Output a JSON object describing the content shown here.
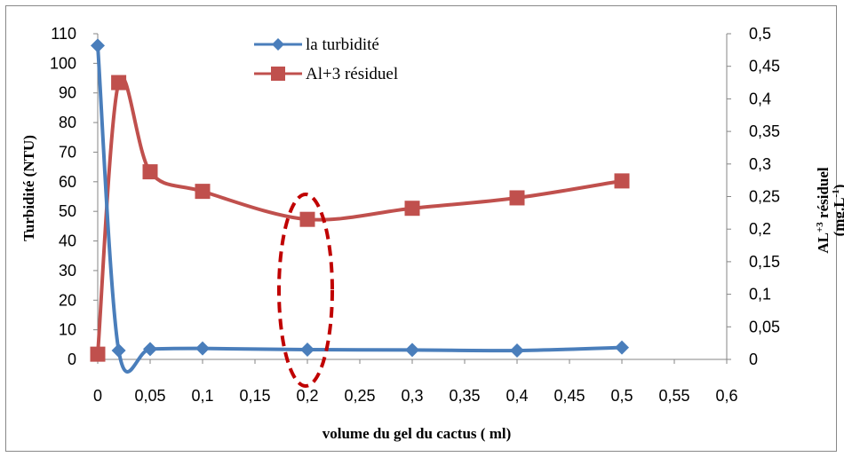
{
  "chart_data": {
    "type": "line",
    "title": "",
    "xlabel": "volume du gel du cactus ( ml)",
    "ylabel": "Turbidité (NTU)",
    "y2label_line1": "AL+3 résiduel",
    "y2label_line2": "(mg.L-1)",
    "xlim": [
      0,
      0.6
    ],
    "ylim": [
      0,
      110
    ],
    "y2lim": [
      0,
      0.5
    ],
    "x_ticks": [
      "0",
      "0,05",
      "0,1",
      "0,15",
      "0,2",
      "0,25",
      "0,3",
      "0,35",
      "0,4",
      "0,45",
      "0,5",
      "0,55",
      "0,6"
    ],
    "y_ticks": [
      "0",
      "10",
      "20",
      "30",
      "40",
      "50",
      "60",
      "70",
      "80",
      "90",
      "100",
      "110"
    ],
    "y2_ticks": [
      "0",
      "0,05",
      "0,1",
      "0,15",
      "0,2",
      "0,25",
      "0,3",
      "0,35",
      "0,4",
      "0,45",
      "0,5"
    ],
    "grid": false,
    "legend_position": "top-center",
    "series": [
      {
        "name": "la turbidité",
        "axis": "left",
        "color": "#4a7ebb",
        "marker": "diamond",
        "x": [
          0,
          0.02,
          0.05,
          0.1,
          0.2,
          0.3,
          0.4,
          0.5
        ],
        "y": [
          106,
          3,
          3.5,
          3.7,
          3.3,
          3.2,
          3.0,
          4.0
        ]
      },
      {
        "name": "Al+3 résiduel",
        "axis": "right",
        "color": "#c0504d",
        "marker": "square",
        "x": [
          0,
          0.02,
          0.05,
          0.1,
          0.2,
          0.3,
          0.4,
          0.5
        ],
        "y": [
          0.008,
          0.425,
          0.288,
          0.258,
          0.215,
          0.232,
          0.248,
          0.274
        ]
      }
    ],
    "annotation": {
      "shape": "dashed-ellipse",
      "color": "#c00000",
      "x": 0.2
    }
  }
}
